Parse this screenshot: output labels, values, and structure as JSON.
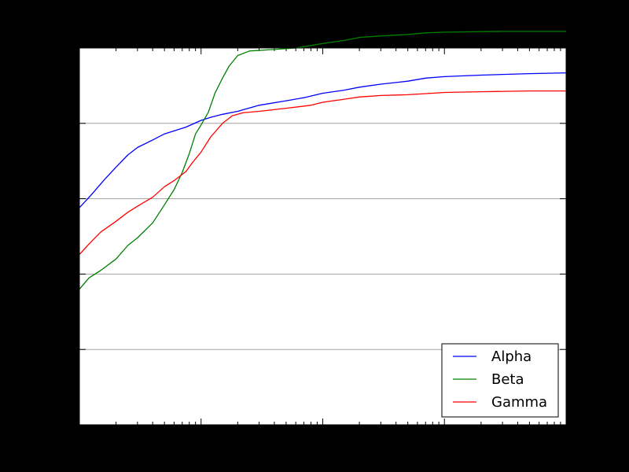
{
  "chart_data": {
    "type": "line",
    "title": "",
    "xlabel": "",
    "ylabel": "",
    "x_scale": "log",
    "xlim": [
      1,
      10000
    ],
    "ylim": [
      0,
      5
    ],
    "grid": "horizontal",
    "legend": "lower-right",
    "series": [
      {
        "name": "Alpha",
        "color": "#0000ff",
        "points": [
          [
            1,
            2.88
          ],
          [
            1.25,
            3.05
          ],
          [
            1.6,
            3.25
          ],
          [
            2,
            3.42
          ],
          [
            2.5,
            3.58
          ],
          [
            3,
            3.68
          ],
          [
            4,
            3.78
          ],
          [
            5,
            3.86
          ],
          [
            6,
            3.9
          ],
          [
            7.5,
            3.95
          ],
          [
            10,
            4.04
          ],
          [
            12,
            4.08
          ],
          [
            15,
            4.12
          ],
          [
            20,
            4.16
          ],
          [
            30,
            4.24
          ],
          [
            50,
            4.3
          ],
          [
            70,
            4.34
          ],
          [
            100,
            4.4
          ],
          [
            150,
            4.44
          ],
          [
            200,
            4.48
          ],
          [
            300,
            4.52
          ],
          [
            500,
            4.56
          ],
          [
            700,
            4.6
          ],
          [
            1000,
            4.62
          ],
          [
            2000,
            4.64
          ],
          [
            5000,
            4.66
          ],
          [
            10000,
            4.67
          ]
        ]
      },
      {
        "name": "Beta",
        "color": "#008000",
        "points": [
          [
            1,
            1.8
          ],
          [
            1.2,
            1.95
          ],
          [
            1.5,
            2.05
          ],
          [
            2,
            2.2
          ],
          [
            2.5,
            2.38
          ],
          [
            3,
            2.48
          ],
          [
            4,
            2.68
          ],
          [
            5,
            2.92
          ],
          [
            6,
            3.12
          ],
          [
            7,
            3.35
          ],
          [
            8,
            3.6
          ],
          [
            9,
            3.86
          ],
          [
            10,
            3.98
          ],
          [
            11.5,
            4.15
          ],
          [
            13,
            4.4
          ],
          [
            15,
            4.6
          ],
          [
            17,
            4.76
          ],
          [
            20,
            4.9
          ],
          [
            25,
            4.96
          ],
          [
            40,
            4.98
          ],
          [
            60,
            5.0
          ],
          [
            100,
            5.06
          ],
          [
            150,
            5.1
          ],
          [
            200,
            5.14
          ],
          [
            300,
            5.16
          ],
          [
            500,
            5.18
          ],
          [
            700,
            5.2
          ],
          [
            1000,
            5.21
          ],
          [
            3000,
            5.22
          ],
          [
            10000,
            5.22
          ]
        ]
      },
      {
        "name": "Gamma",
        "color": "#ff0000",
        "points": [
          [
            1,
            2.26
          ],
          [
            1.2,
            2.4
          ],
          [
            1.5,
            2.56
          ],
          [
            2,
            2.7
          ],
          [
            2.5,
            2.82
          ],
          [
            3,
            2.9
          ],
          [
            4,
            3.02
          ],
          [
            5,
            3.16
          ],
          [
            6,
            3.24
          ],
          [
            7.5,
            3.36
          ],
          [
            8.5,
            3.48
          ],
          [
            10,
            3.62
          ],
          [
            12,
            3.82
          ],
          [
            15,
            4.0
          ],
          [
            18,
            4.1
          ],
          [
            22,
            4.14
          ],
          [
            30,
            4.16
          ],
          [
            50,
            4.2
          ],
          [
            80,
            4.24
          ],
          [
            100,
            4.28
          ],
          [
            150,
            4.32
          ],
          [
            200,
            4.35
          ],
          [
            300,
            4.37
          ],
          [
            500,
            4.38
          ],
          [
            800,
            4.4
          ],
          [
            1000,
            4.41
          ],
          [
            2000,
            4.42
          ],
          [
            5000,
            4.43
          ],
          [
            10000,
            4.43
          ]
        ]
      }
    ]
  }
}
